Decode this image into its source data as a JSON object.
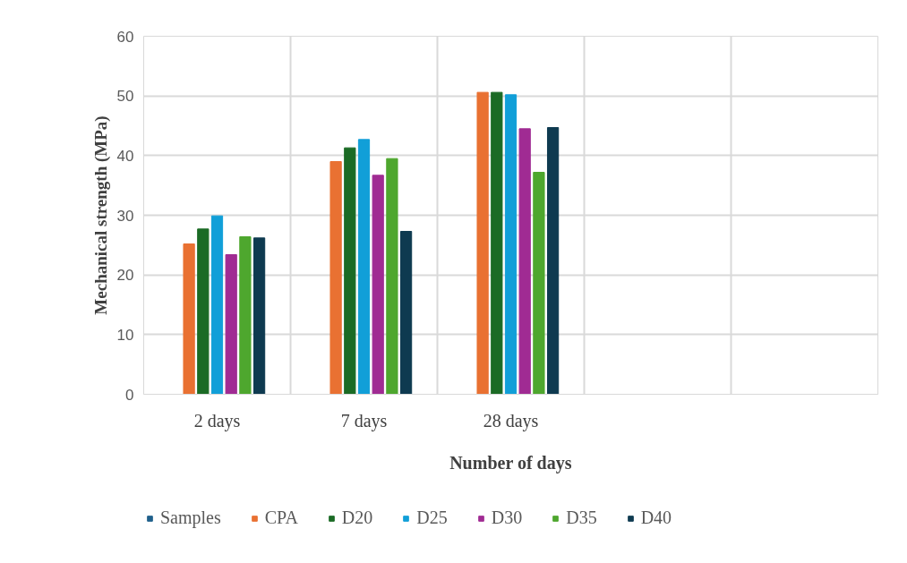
{
  "chart_data": {
    "type": "bar",
    "xlabel": "Number of days",
    "ylabel": "Mechanical strength (MPa)",
    "categories": [
      "2 days",
      "7 days",
      "28 days",
      null,
      null
    ],
    "series": [
      {
        "name": "Samples",
        "color": "#1f5f8b",
        "values": [
          null,
          null,
          null,
          null,
          null
        ]
      },
      {
        "name": "CPA",
        "color": "#e97132",
        "values": [
          25.2,
          39.0,
          50.6,
          null,
          null
        ]
      },
      {
        "name": "D20",
        "color": "#1b6b25",
        "values": [
          27.7,
          41.3,
          50.6,
          null,
          null
        ]
      },
      {
        "name": "D25",
        "color": "#119fd8",
        "values": [
          29.9,
          42.7,
          50.2,
          null,
          null
        ]
      },
      {
        "name": "D30",
        "color": "#a02b93",
        "values": [
          23.4,
          36.7,
          44.5,
          null,
          null
        ]
      },
      {
        "name": "D35",
        "color": "#4ea72e",
        "values": [
          26.4,
          39.5,
          37.2,
          null,
          null
        ]
      },
      {
        "name": "D40",
        "color": "#0e3a50",
        "values": [
          26.2,
          27.3,
          44.7,
          null,
          null
        ]
      }
    ],
    "ylim": [
      0,
      60
    ],
    "yticks": [
      0,
      10,
      20,
      30,
      40,
      50,
      60
    ],
    "grid": true,
    "legend": "bottom"
  }
}
